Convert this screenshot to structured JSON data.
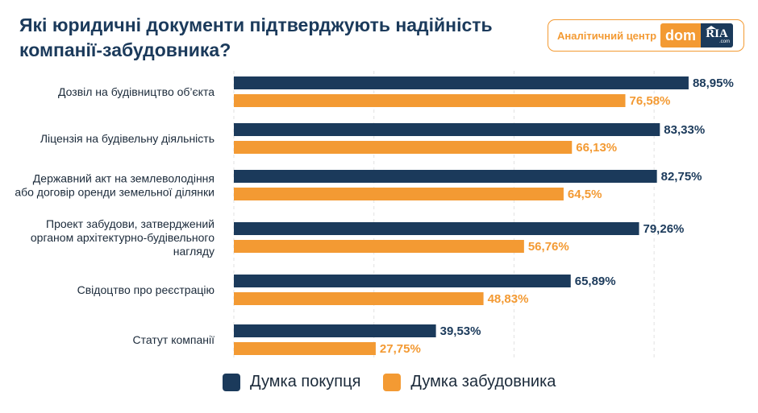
{
  "title": {
    "line1": "Які юридичні документи підтверджують надійність",
    "line2": "компанії-забудовника?"
  },
  "brand": {
    "label": "Аналітичний центр",
    "dom": "dom",
    "ria": "RIA",
    "com": ".com"
  },
  "colors": {
    "buyer": "#1b3a5b",
    "developer": "#f39a33"
  },
  "legend": {
    "buyer_label": "Думка покупця",
    "developer_label": "Думка забудовника"
  },
  "chart_data": {
    "type": "bar",
    "orientation": "horizontal",
    "categories": [
      [
        "Дозвіл на будівництво об’єкта"
      ],
      [
        "Ліцензія на будівельну діяльність"
      ],
      [
        "Державний акт на землеволодіння",
        "або договір оренди земельної ділянки"
      ],
      [
        "Проект забудови, затверджений",
        "органом архітектурно-будівельного",
        "нагляду"
      ],
      [
        "Свідоцтво про реєстрацію"
      ],
      [
        "Статут компанії"
      ]
    ],
    "series": [
      {
        "name": "Думка покупця",
        "values": [
          88.95,
          83.33,
          82.75,
          79.26,
          65.89,
          39.53
        ],
        "labels": [
          "88,95%",
          "83,33%",
          "82,75%",
          "79,26%",
          "65,89%",
          "39,53%"
        ]
      },
      {
        "name": "Думка забудовника",
        "values": [
          76.58,
          66.13,
          64.5,
          56.76,
          48.83,
          27.75
        ],
        "labels": [
          "76,58%",
          "66,13%",
          "64,5%",
          "56,76%",
          "48,83%",
          "27,75%"
        ]
      }
    ],
    "xlim": [
      0,
      100
    ],
    "grid": true,
    "legend_position": "bottom"
  }
}
